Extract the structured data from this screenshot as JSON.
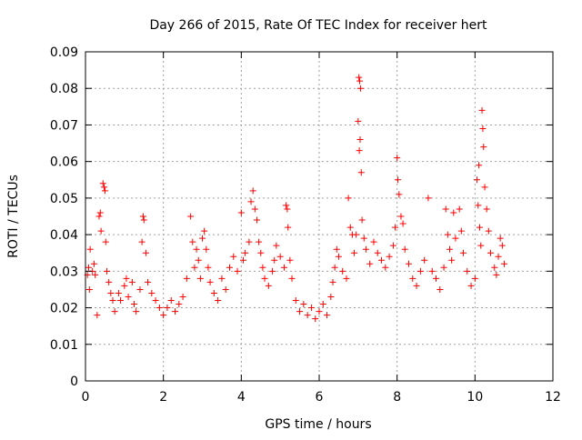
{
  "chart_data": {
    "type": "scatter",
    "title": "Day 266 of 2015, Rate Of TEC Index for receiver hert",
    "xlabel": "GPS time / hours",
    "ylabel": "ROTI / TECUs",
    "xlim": [
      0,
      12
    ],
    "ylim": [
      0,
      0.09
    ],
    "x_ticks": [
      0,
      2,
      4,
      6,
      8,
      10,
      12
    ],
    "x_tick_labels": [
      "0",
      "2",
      "4",
      "6",
      "8",
      "10",
      "12"
    ],
    "y_ticks": [
      0,
      0.01,
      0.02,
      0.03,
      0.04,
      0.05,
      0.06,
      0.07,
      0.08,
      0.09
    ],
    "y_tick_labels": [
      "0",
      "0.01",
      "0.02",
      "0.03",
      "0.04",
      "0.05",
      "0.06",
      "0.07",
      "0.08",
      "0.09"
    ],
    "grid": true,
    "marker": "plus",
    "color": "#ff0000",
    "series": [
      {
        "points": [
          [
            0.05,
            0.029
          ],
          [
            0.08,
            0.031
          ],
          [
            0.1,
            0.025
          ],
          [
            0.12,
            0.036
          ],
          [
            0.18,
            0.03
          ],
          [
            0.22,
            0.032
          ],
          [
            0.25,
            0.029
          ],
          [
            0.3,
            0.018
          ],
          [
            0.35,
            0.045
          ],
          [
            0.38,
            0.046
          ],
          [
            0.4,
            0.041
          ],
          [
            0.45,
            0.054
          ],
          [
            0.48,
            0.053
          ],
          [
            0.5,
            0.052
          ],
          [
            0.52,
            0.038
          ],
          [
            0.55,
            0.03
          ],
          [
            0.6,
            0.027
          ],
          [
            0.65,
            0.024
          ],
          [
            0.7,
            0.022
          ],
          [
            0.75,
            0.019
          ],
          [
            0.85,
            0.024
          ],
          [
            0.9,
            0.022
          ],
          [
            1.0,
            0.026
          ],
          [
            1.05,
            0.028
          ],
          [
            1.1,
            0.023
          ],
          [
            1.2,
            0.027
          ],
          [
            1.25,
            0.021
          ],
          [
            1.3,
            0.019
          ],
          [
            1.4,
            0.025
          ],
          [
            1.45,
            0.038
          ],
          [
            1.48,
            0.045
          ],
          [
            1.5,
            0.044
          ],
          [
            1.55,
            0.035
          ],
          [
            1.6,
            0.027
          ],
          [
            1.7,
            0.024
          ],
          [
            1.8,
            0.022
          ],
          [
            1.9,
            0.02
          ],
          [
            2.0,
            0.018
          ],
          [
            2.1,
            0.02
          ],
          [
            2.2,
            0.022
          ],
          [
            2.3,
            0.019
          ],
          [
            2.4,
            0.021
          ],
          [
            2.5,
            0.023
          ],
          [
            2.6,
            0.028
          ],
          [
            2.7,
            0.045
          ],
          [
            2.75,
            0.038
          ],
          [
            2.8,
            0.031
          ],
          [
            2.85,
            0.036
          ],
          [
            2.9,
            0.033
          ],
          [
            2.95,
            0.028
          ],
          [
            3.0,
            0.039
          ],
          [
            3.05,
            0.041
          ],
          [
            3.1,
            0.036
          ],
          [
            3.15,
            0.031
          ],
          [
            3.2,
            0.027
          ],
          [
            3.3,
            0.024
          ],
          [
            3.4,
            0.022
          ],
          [
            3.5,
            0.028
          ],
          [
            3.6,
            0.025
          ],
          [
            3.7,
            0.031
          ],
          [
            3.8,
            0.034
          ],
          [
            3.9,
            0.03
          ],
          [
            4.0,
            0.046
          ],
          [
            4.05,
            0.033
          ],
          [
            4.1,
            0.035
          ],
          [
            4.2,
            0.038
          ],
          [
            4.25,
            0.049
          ],
          [
            4.3,
            0.052
          ],
          [
            4.35,
            0.047
          ],
          [
            4.4,
            0.044
          ],
          [
            4.45,
            0.038
          ],
          [
            4.5,
            0.035
          ],
          [
            4.55,
            0.031
          ],
          [
            4.6,
            0.028
          ],
          [
            4.7,
            0.026
          ],
          [
            4.8,
            0.03
          ],
          [
            4.85,
            0.033
          ],
          [
            4.9,
            0.037
          ],
          [
            5.0,
            0.034
          ],
          [
            5.1,
            0.031
          ],
          [
            5.15,
            0.048
          ],
          [
            5.18,
            0.047
          ],
          [
            5.2,
            0.042
          ],
          [
            5.25,
            0.033
          ],
          [
            5.3,
            0.028
          ],
          [
            5.4,
            0.022
          ],
          [
            5.5,
            0.019
          ],
          [
            5.6,
            0.021
          ],
          [
            5.7,
            0.018
          ],
          [
            5.8,
            0.02
          ],
          [
            5.9,
            0.017
          ],
          [
            6.0,
            0.019
          ],
          [
            6.1,
            0.021
          ],
          [
            6.2,
            0.018
          ],
          [
            6.3,
            0.023
          ],
          [
            6.35,
            0.027
          ],
          [
            6.4,
            0.031
          ],
          [
            6.45,
            0.036
          ],
          [
            6.5,
            0.034
          ],
          [
            6.6,
            0.03
          ],
          [
            6.7,
            0.028
          ],
          [
            6.75,
            0.05
          ],
          [
            6.8,
            0.042
          ],
          [
            6.85,
            0.04
          ],
          [
            6.9,
            0.035
          ],
          [
            6.95,
            0.04
          ],
          [
            7.0,
            0.071
          ],
          [
            7.02,
            0.083
          ],
          [
            7.04,
            0.082
          ],
          [
            7.06,
            0.08
          ],
          [
            7.05,
            0.066
          ],
          [
            7.03,
            0.063
          ],
          [
            7.08,
            0.057
          ],
          [
            7.1,
            0.044
          ],
          [
            7.15,
            0.039
          ],
          [
            7.2,
            0.036
          ],
          [
            7.3,
            0.032
          ],
          [
            7.4,
            0.038
          ],
          [
            7.5,
            0.035
          ],
          [
            7.6,
            0.033
          ],
          [
            7.7,
            0.031
          ],
          [
            7.8,
            0.034
          ],
          [
            7.9,
            0.037
          ],
          [
            7.95,
            0.042
          ],
          [
            8.0,
            0.061
          ],
          [
            8.02,
            0.055
          ],
          [
            8.05,
            0.051
          ],
          [
            8.1,
            0.045
          ],
          [
            8.15,
            0.043
          ],
          [
            8.2,
            0.036
          ],
          [
            8.3,
            0.032
          ],
          [
            8.4,
            0.028
          ],
          [
            8.5,
            0.026
          ],
          [
            8.6,
            0.03
          ],
          [
            8.7,
            0.033
          ],
          [
            8.8,
            0.05
          ],
          [
            8.9,
            0.03
          ],
          [
            9.0,
            0.028
          ],
          [
            9.1,
            0.025
          ],
          [
            9.2,
            0.031
          ],
          [
            9.25,
            0.047
          ],
          [
            9.3,
            0.04
          ],
          [
            9.35,
            0.036
          ],
          [
            9.4,
            0.033
          ],
          [
            9.45,
            0.046
          ],
          [
            9.5,
            0.039
          ],
          [
            9.6,
            0.047
          ],
          [
            9.65,
            0.041
          ],
          [
            9.7,
            0.035
          ],
          [
            9.8,
            0.03
          ],
          [
            9.9,
            0.026
          ],
          [
            10.0,
            0.028
          ],
          [
            10.05,
            0.055
          ],
          [
            10.08,
            0.048
          ],
          [
            10.1,
            0.059
          ],
          [
            10.12,
            0.042
          ],
          [
            10.15,
            0.037
          ],
          [
            10.18,
            0.074
          ],
          [
            10.2,
            0.069
          ],
          [
            10.22,
            0.064
          ],
          [
            10.25,
            0.053
          ],
          [
            10.3,
            0.047
          ],
          [
            10.35,
            0.041
          ],
          [
            10.4,
            0.035
          ],
          [
            10.5,
            0.031
          ],
          [
            10.55,
            0.029
          ],
          [
            10.6,
            0.034
          ],
          [
            10.65,
            0.039
          ],
          [
            10.7,
            0.037
          ],
          [
            10.75,
            0.032
          ]
        ]
      }
    ]
  }
}
